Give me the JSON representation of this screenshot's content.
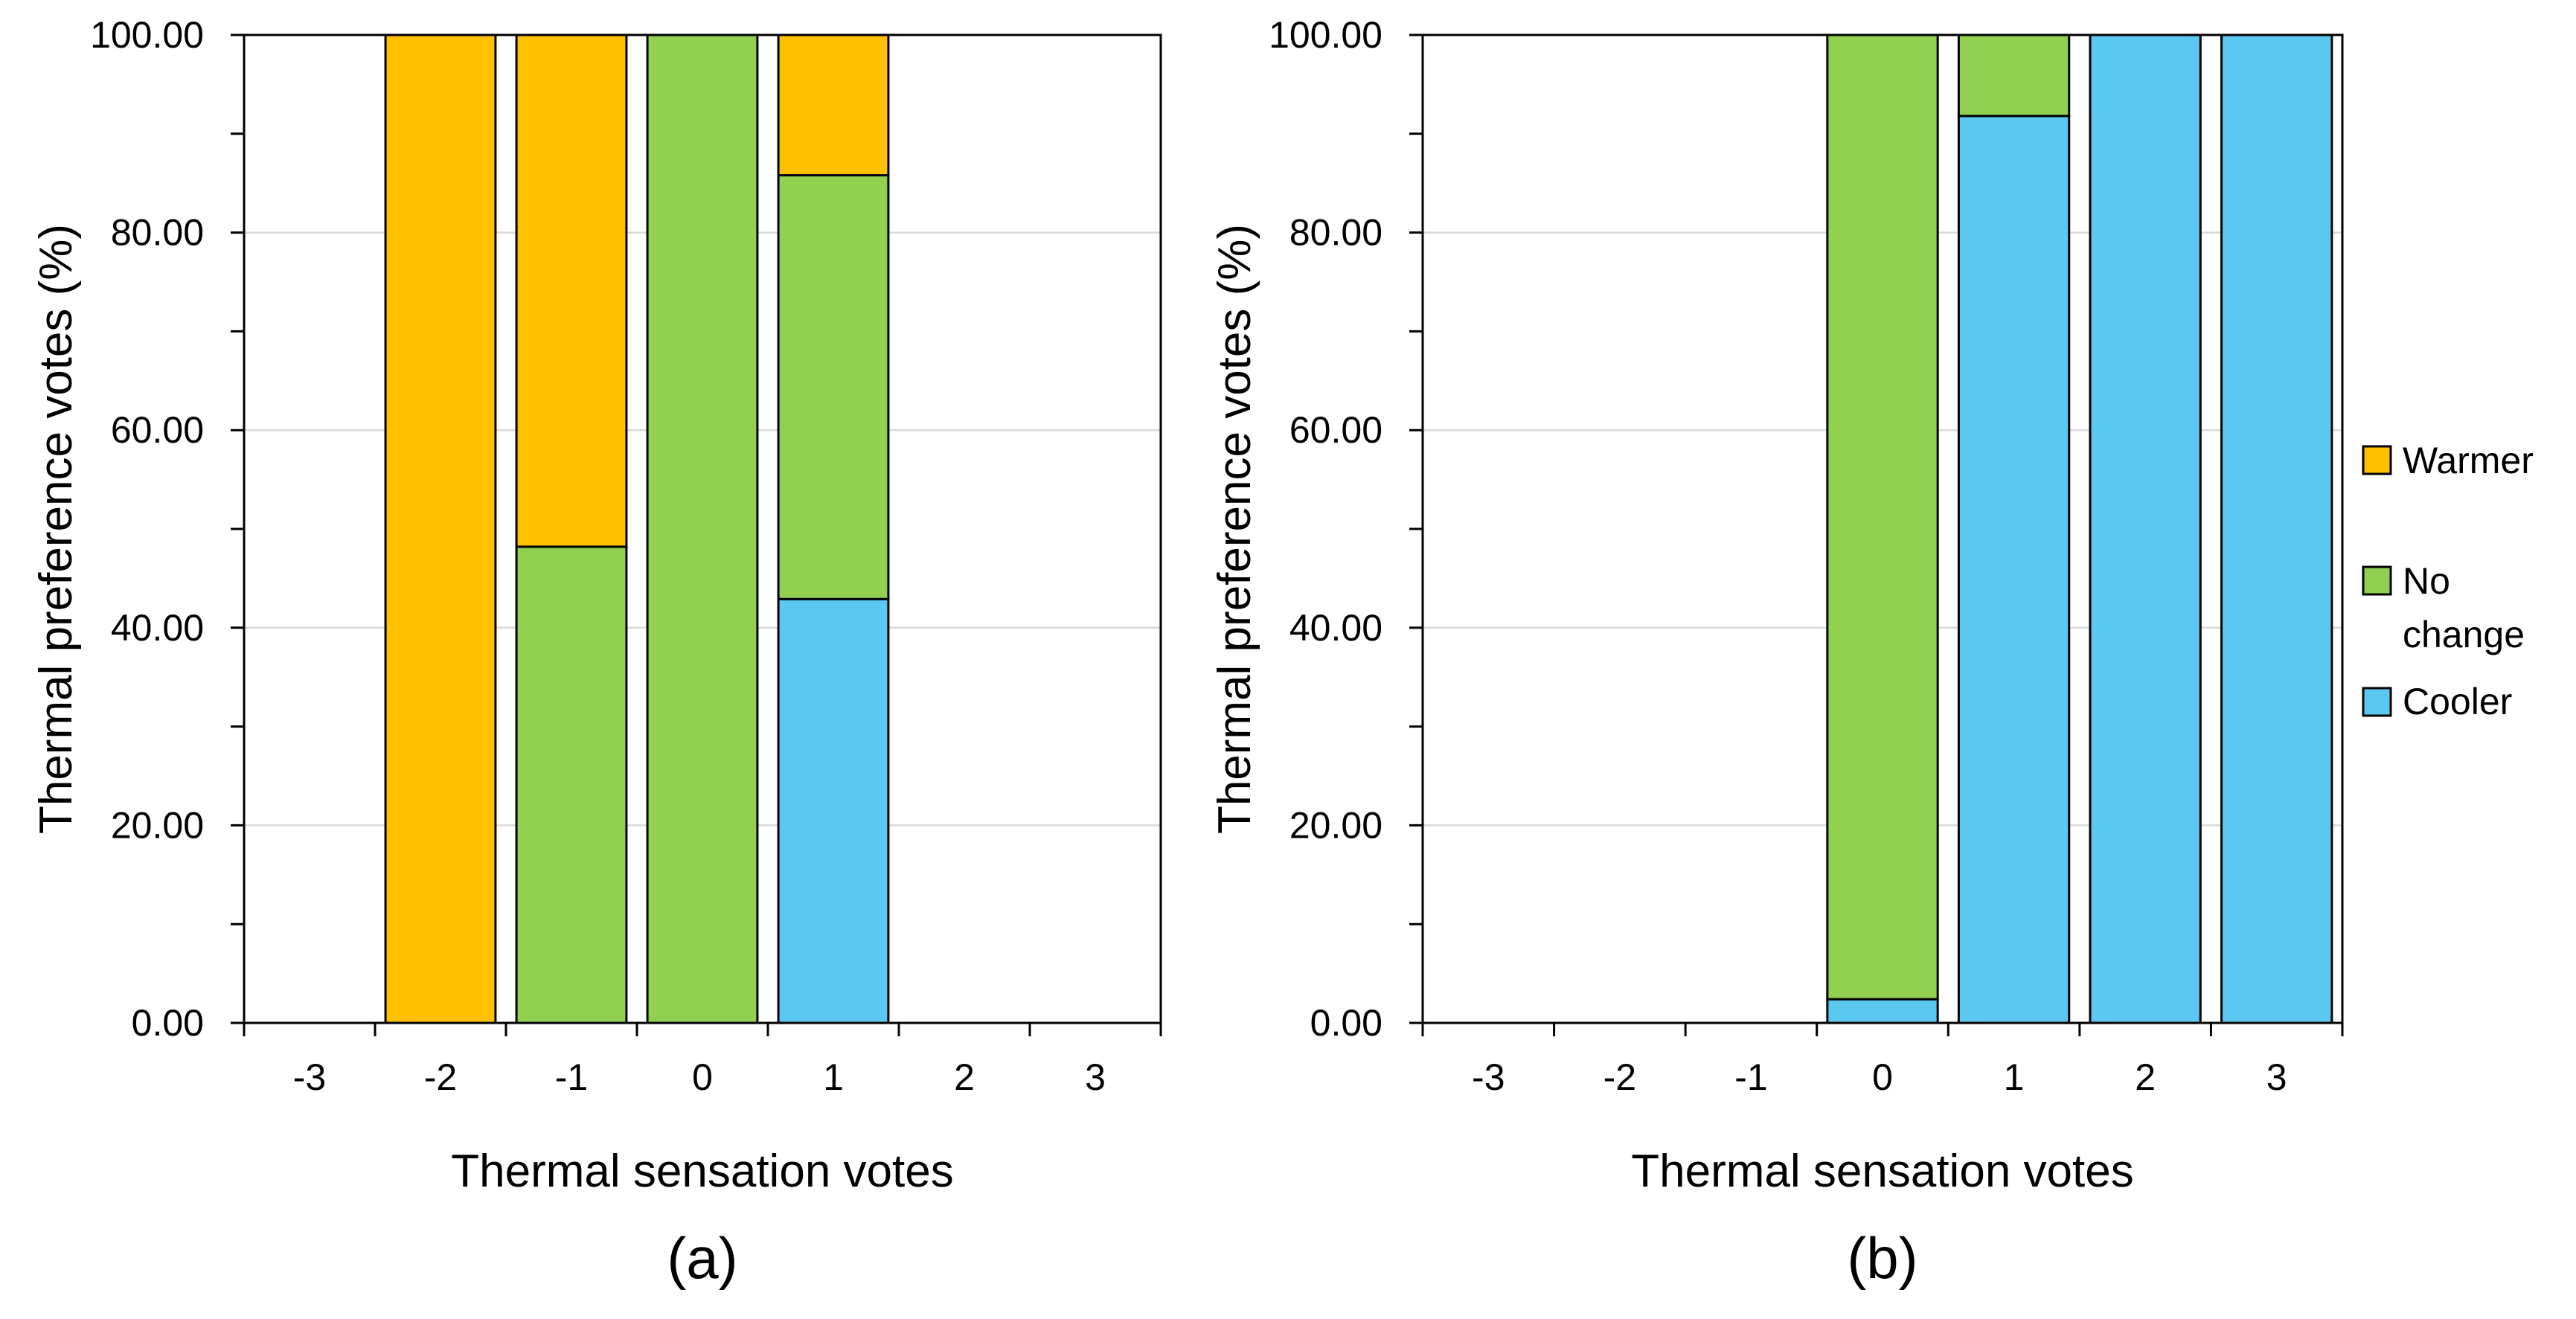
{
  "colors": {
    "Warmer": "#FFC000",
    "No change": "#92D050",
    "Cooler": "#5BC8F2",
    "gridline": "#D9D9D9",
    "axis": "#000000"
  },
  "legend": {
    "items": [
      {
        "label": "Warmer",
        "lines": [
          "Warmer"
        ]
      },
      {
        "label": "No change",
        "lines": [
          "No",
          "change"
        ]
      },
      {
        "label": "Cooler",
        "lines": [
          "Cooler"
        ]
      }
    ]
  },
  "chart_data": [
    {
      "type": "bar",
      "stacked": true,
      "panel_label": "(a)",
      "xlabel": "Thermal sensation votes",
      "ylabel": "Thermal preference votes (%)",
      "ylim": [
        0,
        100
      ],
      "y_ticks": [
        "0.00",
        "20.00",
        "40.00",
        "60.00",
        "80.00",
        "100.00"
      ],
      "grid": true,
      "categories": [
        "-3",
        "-2",
        "-1",
        "0",
        "1",
        "2",
        "3"
      ],
      "series": [
        {
          "name": "Cooler",
          "values": [
            0,
            0,
            0,
            0,
            42.9,
            0,
            0
          ]
        },
        {
          "name": "No change",
          "values": [
            0,
            0,
            48.2,
            100,
            42.9,
            0,
            0
          ]
        },
        {
          "name": "Warmer",
          "values": [
            0,
            100,
            51.8,
            0,
            14.2,
            0,
            0
          ]
        }
      ]
    },
    {
      "type": "bar",
      "stacked": true,
      "panel_label": "(b)",
      "xlabel": "Thermal sensation votes",
      "ylabel": "Thermal preference votes (%)",
      "ylim": [
        0,
        100
      ],
      "y_ticks": [
        "0.00",
        "20.00",
        "40.00",
        "60.00",
        "80.00",
        "100.00"
      ],
      "grid": true,
      "categories": [
        "-3",
        "-2",
        "-1",
        "0",
        "1",
        "2",
        "3"
      ],
      "series": [
        {
          "name": "Cooler",
          "values": [
            0,
            0,
            0,
            2.4,
            91.8,
            100,
            100
          ]
        },
        {
          "name": "No change",
          "values": [
            0,
            0,
            0,
            97.6,
            8.2,
            0,
            0
          ]
        },
        {
          "name": "Warmer",
          "values": [
            0,
            0,
            0,
            0,
            0,
            0,
            0
          ]
        }
      ]
    }
  ]
}
